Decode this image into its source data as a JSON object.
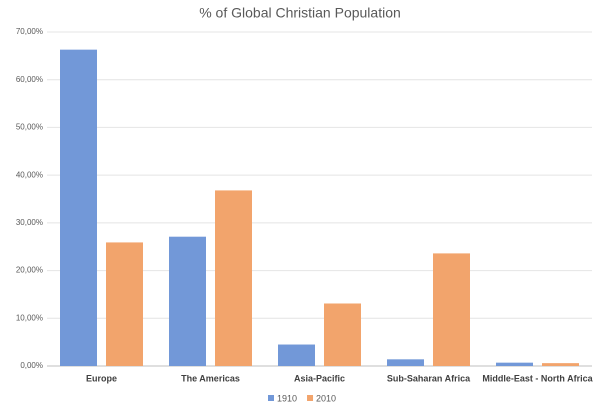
{
  "chart_data": {
    "type": "bar",
    "title": "% of Global Christian Population",
    "categories": [
      "Europe",
      "The Americas",
      "Asia-Pacific",
      "Sub-Saharan Africa",
      "Middle-East - North Africa"
    ],
    "series": [
      {
        "name": "1910",
        "color": "#7298d8",
        "values": [
          66.3,
          27.1,
          4.5,
          1.4,
          0.7
        ]
      },
      {
        "name": "2010",
        "color": "#f2a46c",
        "values": [
          25.9,
          36.8,
          13.1,
          23.6,
          0.6
        ]
      }
    ],
    "ylim": [
      0,
      70
    ],
    "yticks": [
      {
        "value": 0,
        "label": "0,00%"
      },
      {
        "value": 10,
        "label": "10,00%"
      },
      {
        "value": 20,
        "label": "20,00%"
      },
      {
        "value": 30,
        "label": "30,00%"
      },
      {
        "value": 40,
        "label": "40,00%"
      },
      {
        "value": 50,
        "label": "50,00%"
      },
      {
        "value": 60,
        "label": "60,00%"
      },
      {
        "value": 70,
        "label": "70,00%"
      }
    ],
    "grid": true,
    "legend": "bottom"
  }
}
